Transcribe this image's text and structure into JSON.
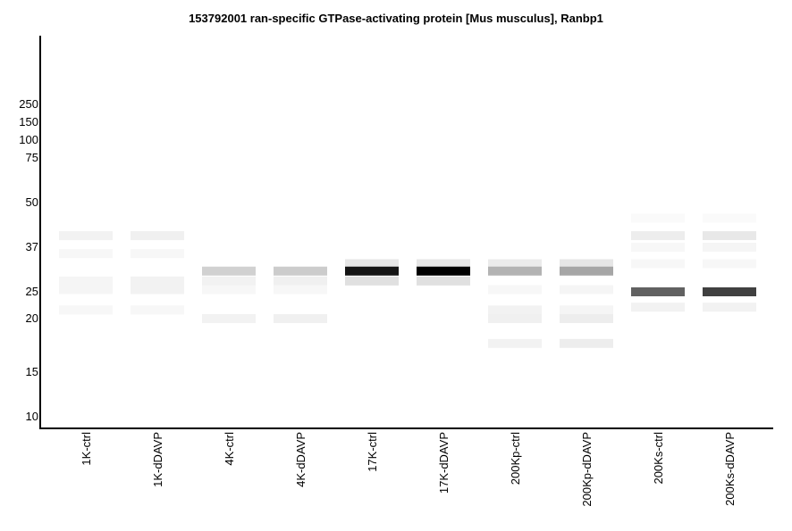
{
  "chart_data": {
    "type": "gel",
    "title": "153792001 ran-specific GTPase-activating protein [Mus musculus], Ranbp1",
    "y_scale": "log",
    "ylabel": "",
    "xlabel": "",
    "y_ticks": [
      "250",
      "150",
      "100",
      "75",
      "50",
      "37",
      "25",
      "20",
      "15",
      "10"
    ],
    "lanes": [
      {
        "label": "1K-ctrl",
        "bands": [
          {
            "mw": 40,
            "intensity": 0.05
          },
          {
            "mw": 35,
            "intensity": 0.03
          },
          {
            "mw": 27.5,
            "intensity": 0.04
          },
          {
            "mw": 25.5,
            "intensity": 0.04
          },
          {
            "mw": 21.5,
            "intensity": 0.03
          }
        ]
      },
      {
        "label": "1K-dDAVP",
        "bands": [
          {
            "mw": 40,
            "intensity": 0.06
          },
          {
            "mw": 35,
            "intensity": 0.03
          },
          {
            "mw": 27.5,
            "intensity": 0.05
          },
          {
            "mw": 25.5,
            "intensity": 0.05
          },
          {
            "mw": 21.5,
            "intensity": 0.03
          }
        ]
      },
      {
        "label": "4K-ctrl",
        "bands": [
          {
            "mw": 30,
            "intensity": 0.18
          },
          {
            "mw": 27.5,
            "intensity": 0.05
          },
          {
            "mw": 25.5,
            "intensity": 0.03
          },
          {
            "mw": 20,
            "intensity": 0.05
          }
        ]
      },
      {
        "label": "4K-dDAVP",
        "bands": [
          {
            "mw": 30,
            "intensity": 0.2
          },
          {
            "mw": 27.5,
            "intensity": 0.06
          },
          {
            "mw": 25.5,
            "intensity": 0.03
          },
          {
            "mw": 20,
            "intensity": 0.06
          }
        ]
      },
      {
        "label": "17K-ctrl",
        "bands": [
          {
            "mw": 32,
            "intensity": 0.1
          },
          {
            "mw": 30,
            "intensity": 0.92
          },
          {
            "mw": 27.5,
            "intensity": 0.12
          }
        ]
      },
      {
        "label": "17K-dDAVP",
        "bands": [
          {
            "mw": 32,
            "intensity": 0.1
          },
          {
            "mw": 30,
            "intensity": 1.0
          },
          {
            "mw": 27.5,
            "intensity": 0.12
          }
        ]
      },
      {
        "label": "200Kp-ctrl",
        "bands": [
          {
            "mw": 32,
            "intensity": 0.08
          },
          {
            "mw": 30,
            "intensity": 0.3
          },
          {
            "mw": 25.5,
            "intensity": 0.03
          },
          {
            "mw": 21.5,
            "intensity": 0.05
          },
          {
            "mw": 20,
            "intensity": 0.06
          },
          {
            "mw": 17.5,
            "intensity": 0.05
          }
        ]
      },
      {
        "label": "200Kp-dDAVP",
        "bands": [
          {
            "mw": 32,
            "intensity": 0.1
          },
          {
            "mw": 30,
            "intensity": 0.35
          },
          {
            "mw": 25.5,
            "intensity": 0.04
          },
          {
            "mw": 21.5,
            "intensity": 0.04
          },
          {
            "mw": 20,
            "intensity": 0.07
          },
          {
            "mw": 17.5,
            "intensity": 0.07
          }
        ]
      },
      {
        "label": "200Ks-ctrl",
        "bands": [
          {
            "mw": 45,
            "intensity": 0.02
          },
          {
            "mw": 40,
            "intensity": 0.07
          },
          {
            "mw": 37,
            "intensity": 0.03
          },
          {
            "mw": 32,
            "intensity": 0.03
          },
          {
            "mw": 25,
            "intensity": 0.62
          },
          {
            "mw": 22,
            "intensity": 0.05
          }
        ]
      },
      {
        "label": "200Ks-dDAVP",
        "bands": [
          {
            "mw": 45,
            "intensity": 0.02
          },
          {
            "mw": 40,
            "intensity": 0.09
          },
          {
            "mw": 37,
            "intensity": 0.04
          },
          {
            "mw": 32,
            "intensity": 0.03
          },
          {
            "mw": 25,
            "intensity": 0.75
          },
          {
            "mw": 22,
            "intensity": 0.05
          }
        ]
      }
    ]
  }
}
